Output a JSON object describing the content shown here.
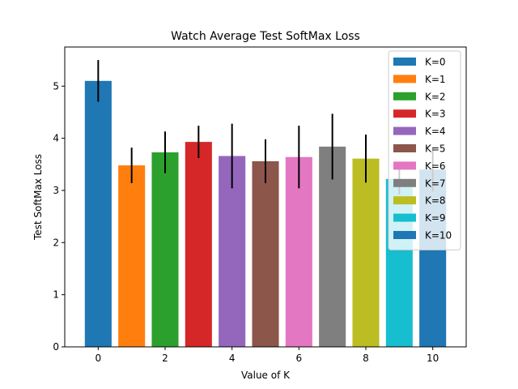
{
  "chart_data": {
    "type": "bar",
    "title": "Watch Average Test SoftMax Loss",
    "xlabel": "Value of K",
    "ylabel": "Test SoftMax Loss",
    "xlim": [
      -1,
      11
    ],
    "ylim": [
      0,
      5.75
    ],
    "xticks": [
      0,
      2,
      4,
      6,
      8,
      10
    ],
    "yticks": [
      0,
      1,
      2,
      3,
      4,
      5
    ],
    "legend_position": "upper right",
    "grid": false,
    "series": [
      {
        "name": "K=0",
        "x": 0,
        "value": 5.1,
        "err": 0.4,
        "color": "#1f77b4"
      },
      {
        "name": "K=1",
        "x": 1,
        "value": 3.48,
        "err": 0.34,
        "color": "#ff7f0e"
      },
      {
        "name": "K=2",
        "x": 2,
        "value": 3.73,
        "err": 0.4,
        "color": "#2ca02c"
      },
      {
        "name": "K=3",
        "x": 3,
        "value": 3.93,
        "err": 0.31,
        "color": "#d62728"
      },
      {
        "name": "K=4",
        "x": 4,
        "value": 3.66,
        "err": 0.62,
        "color": "#9467bd"
      },
      {
        "name": "K=5",
        "x": 5,
        "value": 3.56,
        "err": 0.42,
        "color": "#8c564b"
      },
      {
        "name": "K=6",
        "x": 6,
        "value": 3.64,
        "err": 0.6,
        "color": "#e377c2"
      },
      {
        "name": "K=7",
        "x": 7,
        "value": 3.84,
        "err": 0.63,
        "color": "#7f7f7f"
      },
      {
        "name": "K=8",
        "x": 8,
        "value": 3.61,
        "err": 0.46,
        "color": "#bcbd22"
      },
      {
        "name": "K=9",
        "x": 9,
        "value": 3.22,
        "err": 0.3,
        "color": "#17becf"
      },
      {
        "name": "K=10",
        "x": 10,
        "value": 3.4,
        "err": 0.42,
        "color": "#1f77b4"
      }
    ]
  }
}
